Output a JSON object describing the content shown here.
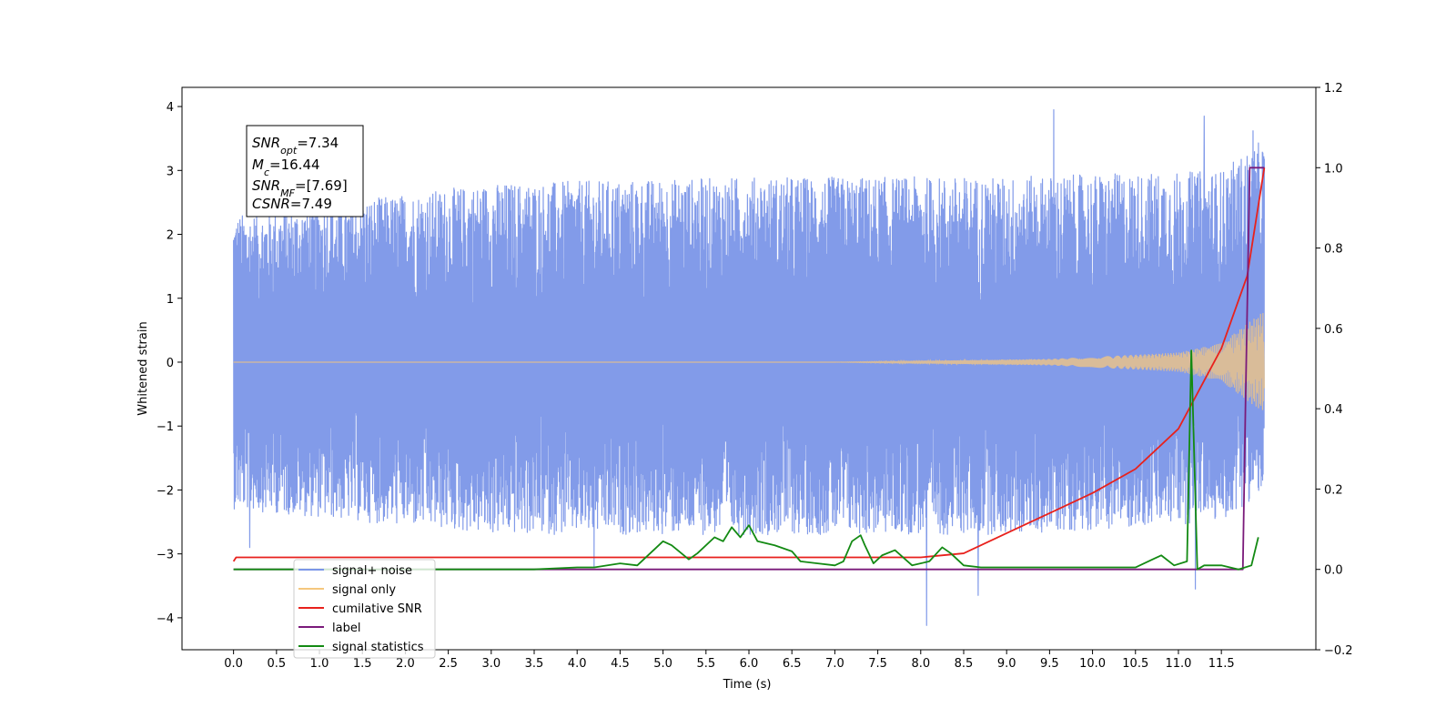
{
  "chart_data": {
    "type": "line",
    "xlabel": "Time (s)",
    "ylabel": "Whitened strain",
    "ylabel_right": "",
    "xlim": [
      -0.6,
      12.6
    ],
    "ylim": [
      -4.5,
      4.3
    ],
    "ylim_right": [
      -0.2,
      1.2
    ],
    "x_ticks": [
      "0.0",
      "0.5",
      "1.0",
      "1.5",
      "2.0",
      "2.5",
      "3.0",
      "3.5",
      "4.0",
      "4.5",
      "5.0",
      "5.5",
      "6.0",
      "6.5",
      "7.0",
      "7.5",
      "8.0",
      "8.5",
      "9.0",
      "9.5",
      "10.0",
      "10.5",
      "11.0",
      "11.5"
    ],
    "y_ticks": [
      "4",
      "3",
      "2",
      "1",
      "0",
      "−1",
      "−2",
      "−3",
      "−4"
    ],
    "y_ticks_right": [
      "1.2",
      "1.0",
      "0.8",
      "0.6",
      "0.4",
      "0.2",
      "0.0",
      "−0.2"
    ],
    "grid": false,
    "legend_placement": "lower-left",
    "annotation": {
      "lines": [
        {
          "base": "SNR",
          "sub": "opt",
          "rest": "=7.34"
        },
        {
          "base": "M",
          "sub": "c",
          "rest": "=16.44"
        },
        {
          "base": "SNR",
          "sub": "MF",
          "rest": "=[7.69]"
        },
        {
          "base": "CSNR",
          "sub": "",
          "rest": "=7.49"
        }
      ]
    },
    "series": [
      {
        "name": "signal+ noise",
        "color": "#7b96e8",
        "axis": "left",
        "kind": "noise",
        "x_range": [
          0.0,
          12.0
        ],
        "envelope_upper": [
          [
            0.0,
            2.3
          ],
          [
            3.0,
            2.8
          ],
          [
            6.0,
            2.9
          ],
          [
            9.0,
            2.9
          ],
          [
            11.5,
            3.0
          ],
          [
            12.0,
            3.5
          ]
        ],
        "envelope_lower": [
          [
            0.0,
            -2.3
          ],
          [
            3.0,
            -2.7
          ],
          [
            6.0,
            -2.7
          ],
          [
            9.0,
            -2.7
          ],
          [
            11.5,
            -2.5
          ],
          [
            12.0,
            -2.0
          ]
        ],
        "peaks": [
          [
            9.55,
            3.95
          ],
          [
            11.3,
            3.85
          ],
          [
            11.87,
            3.62
          ],
          [
            8.07,
            -4.12
          ],
          [
            8.67,
            -3.65
          ],
          [
            11.2,
            -3.55
          ],
          [
            4.2,
            -3.2
          ],
          [
            0.19,
            -2.9
          ]
        ]
      },
      {
        "name": "signal only",
        "color": "#f5c77e",
        "axis": "left",
        "kind": "chirp",
        "x_range": [
          0.0,
          12.0
        ],
        "amplitude": [
          [
            0.0,
            0.0
          ],
          [
            7.0,
            0.0
          ],
          [
            9.5,
            0.05
          ],
          [
            11.0,
            0.15
          ],
          [
            11.5,
            0.3
          ],
          [
            12.0,
            0.8
          ]
        ]
      },
      {
        "name": "cumilative SNR",
        "color": "#e8211c",
        "axis": "right",
        "x": [
          0.0,
          0.03,
          8.0,
          8.5,
          9.0,
          9.5,
          10.0,
          10.5,
          11.0,
          11.5,
          11.8,
          12.0
        ],
        "y": [
          0.02,
          0.03,
          0.03,
          0.04,
          0.09,
          0.14,
          0.19,
          0.25,
          0.35,
          0.55,
          0.73,
          1.0
        ]
      },
      {
        "name": "label",
        "color": "#7a1a7a",
        "axis": "right",
        "x": [
          0.0,
          11.75,
          11.78,
          11.83,
          12.0
        ],
        "y": [
          0.0,
          0.0,
          0.4,
          1.0,
          1.0
        ]
      },
      {
        "name": "signal statistics",
        "color": "#138a13",
        "axis": "right",
        "x": [
          0.0,
          1.0,
          2.0,
          3.0,
          3.5,
          4.0,
          4.2,
          4.5,
          4.7,
          5.0,
          5.1,
          5.3,
          5.4,
          5.6,
          5.7,
          5.8,
          5.9,
          6.0,
          6.1,
          6.3,
          6.5,
          6.6,
          6.8,
          7.0,
          7.1,
          7.2,
          7.3,
          7.35,
          7.45,
          7.55,
          7.7,
          7.9,
          8.1,
          8.25,
          8.35,
          8.5,
          8.7,
          9.0,
          9.5,
          10.0,
          10.5,
          10.8,
          10.95,
          11.1,
          11.15,
          11.22,
          11.3,
          11.5,
          11.7,
          11.85,
          11.93
        ],
        "y": [
          0.0,
          0.0,
          0.0,
          0.0,
          0.0,
          0.005,
          0.005,
          0.015,
          0.01,
          0.07,
          0.06,
          0.025,
          0.04,
          0.08,
          0.07,
          0.105,
          0.08,
          0.11,
          0.07,
          0.06,
          0.045,
          0.02,
          0.015,
          0.01,
          0.02,
          0.07,
          0.085,
          0.06,
          0.015,
          0.035,
          0.048,
          0.01,
          0.02,
          0.055,
          0.04,
          0.01,
          0.005,
          0.005,
          0.005,
          0.005,
          0.005,
          0.035,
          0.01,
          0.02,
          0.545,
          0.0,
          0.01,
          0.01,
          0.0,
          0.01,
          0.08
        ]
      }
    ],
    "legend": [
      {
        "label": "signal+ noise",
        "color": "#7b96e8"
      },
      {
        "label": "signal only",
        "color": "#f5c77e"
      },
      {
        "label": "cumilative SNR",
        "color": "#e8211c"
      },
      {
        "label": "label",
        "color": "#7a1a7a"
      },
      {
        "label": "signal statistics",
        "color": "#138a13"
      }
    ]
  }
}
